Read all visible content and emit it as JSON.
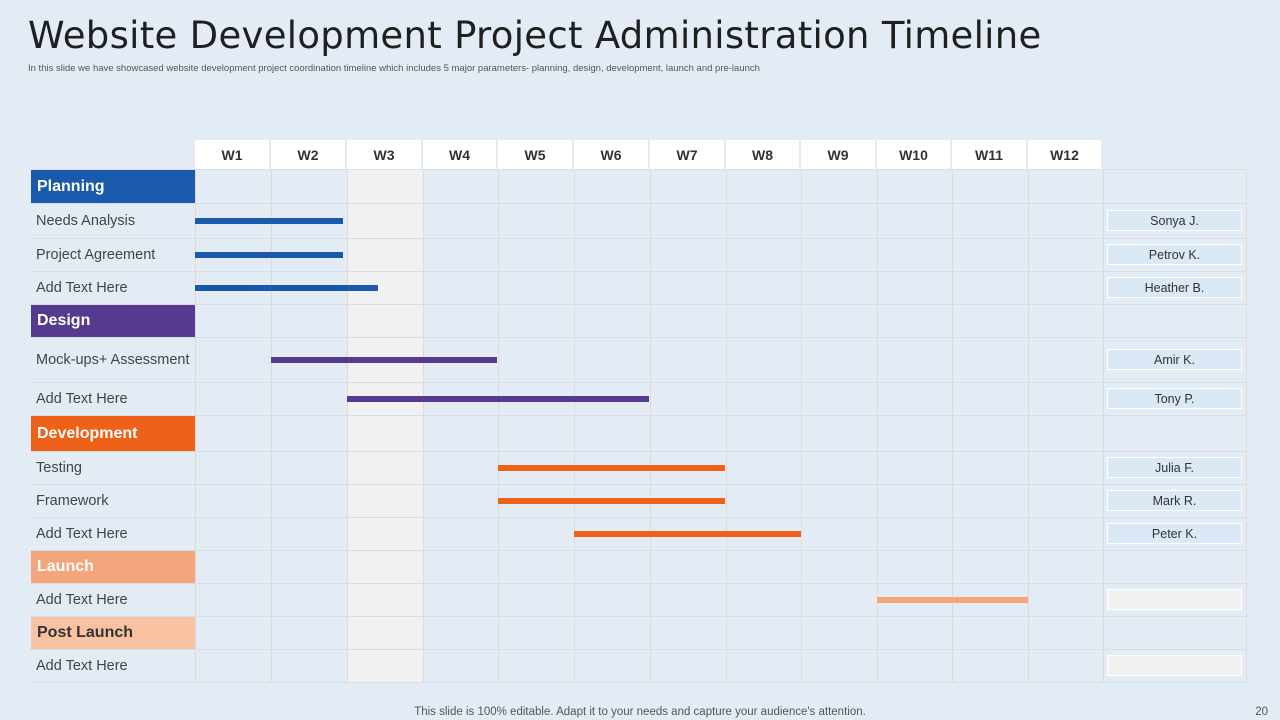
{
  "slide": {
    "title": "Website Development Project Administration Timeline",
    "subtitle": "In this slide we have showcased website development project coordination timeline  which includes 5 major parameters- planning, design, development, launch and pre-launch",
    "footer": "This slide is 100% editable. Adapt it to your needs and capture your audience's attention.",
    "page_number": "20"
  },
  "weeks": [
    "W1",
    "W2",
    "W3",
    "W4",
    "W5",
    "W6",
    "W7",
    "W8",
    "W9",
    "W10",
    "W11",
    "W12"
  ],
  "colors": {
    "planning": "#1a5aab",
    "design": "#553a8e",
    "development": "#ee6119",
    "launch": "#f5a57c",
    "post_launch": "#f9c2a3",
    "assignee_bg": "#dbe8f6",
    "assignee_empty_bg": "#f1f1f1"
  },
  "rows": [
    {
      "kind": "category",
      "label": "Planning",
      "color_key": "planning",
      "text_color": "#ffffff"
    },
    {
      "kind": "task",
      "label": "Needs Analysis",
      "bar": {
        "start": 1,
        "end": 1.95
      },
      "color_key": "planning",
      "assignee": "Sonya J."
    },
    {
      "kind": "task",
      "label": "Project Agreement",
      "bar": {
        "start": 1,
        "end": 1.95
      },
      "color_key": "planning",
      "assignee": "Petrov K."
    },
    {
      "kind": "task",
      "label": "Add Text Here",
      "bar": {
        "start": 1,
        "end": 2.42
      },
      "color_key": "planning",
      "assignee": "Heather B."
    },
    {
      "kind": "category",
      "label": "Design",
      "color_key": "design",
      "text_color": "#ffffff"
    },
    {
      "kind": "task",
      "label": "Mock-ups+ Assessment",
      "bar": {
        "start": 2,
        "end": 3.99
      },
      "color_key": "design",
      "assignee": "Amir K."
    },
    {
      "kind": "task",
      "label": "Add Text Here",
      "bar": {
        "start": 3,
        "end": 5.99
      },
      "color_key": "design",
      "assignee": "Tony P."
    },
    {
      "kind": "category",
      "label": "Development",
      "color_key": "development",
      "text_color": "#ffffff"
    },
    {
      "kind": "task",
      "label": "Testing",
      "bar": {
        "start": 5,
        "end": 6.99
      },
      "color_key": "development",
      "assignee": "Julia F."
    },
    {
      "kind": "task",
      "label": "Framework",
      "bar": {
        "start": 5,
        "end": 6.99
      },
      "color_key": "development",
      "assignee": "Mark R."
    },
    {
      "kind": "task",
      "label": "Add Text Here",
      "bar": {
        "start": 6,
        "end": 7.99
      },
      "color_key": "development",
      "assignee": "Peter K."
    },
    {
      "kind": "category",
      "label": "Launch",
      "color_key": "launch",
      "text_color": "#ffffff"
    },
    {
      "kind": "task",
      "label": "Add Text Here",
      "bar": {
        "start": 10,
        "end": 10.99
      },
      "color_key": "launch",
      "assignee": ""
    },
    {
      "kind": "category",
      "label": "Post Launch",
      "color_key": "post_launch",
      "text_color": "#333333"
    },
    {
      "kind": "task",
      "label": "Add Text Here",
      "bar": null,
      "color_key": "post_launch",
      "assignee": ""
    }
  ]
}
